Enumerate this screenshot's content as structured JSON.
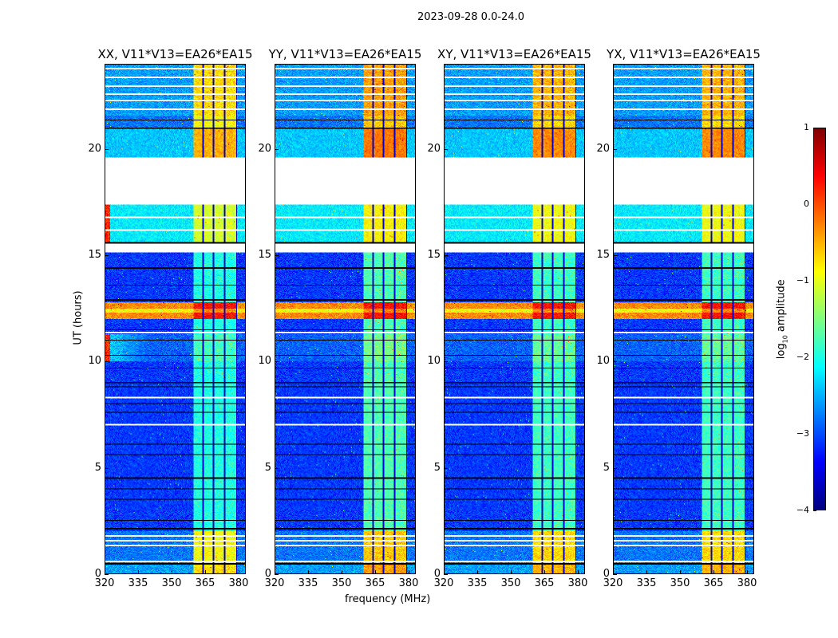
{
  "chart_data": {
    "type": "heatmap",
    "title": "2023-09-28 0.0-24.0",
    "xlabel": "frequency (MHz)",
    "ylabel": "UT (hours)",
    "xlim": [
      320,
      383.2
    ],
    "ylim": [
      0,
      24
    ],
    "xticks": [
      "320",
      "335",
      "350",
      "365",
      "380"
    ],
    "xtick_values": [
      320,
      335,
      350,
      365,
      380
    ],
    "yticks": [
      "0",
      "5",
      "10",
      "15",
      "20"
    ],
    "ytick_values": [
      0,
      5,
      10,
      15,
      20
    ],
    "colormap": "jet",
    "colorbar": {
      "label_main": "log",
      "label_sub": "10",
      "label_rest": " amplitude",
      "range": [
        -4,
        1
      ],
      "ticks": [
        "1",
        "0",
        "−1",
        "−2",
        "−3",
        "−4"
      ],
      "tick_values": [
        1,
        0,
        -1,
        -2,
        -3,
        -4
      ]
    },
    "panels": [
      {
        "title": "XX, V11*V13=EA26*EA15",
        "edge_hot": true,
        "band_boost": 1.4
      },
      {
        "title": "YY, V11*V13=EA26*EA15",
        "edge_hot": false,
        "band_boost": 1.7
      },
      {
        "title": "XY, V11*V13=EA26*EA15",
        "edge_hot": false,
        "band_boost": 1.6
      },
      {
        "title": "YX, V11*V13=EA26*EA15",
        "edge_hot": false,
        "band_boost": 1.6
      }
    ],
    "base_level": -3.1,
    "time_bands": [
      {
        "t0": 0.0,
        "t1": 0.5,
        "level": -2.6
      },
      {
        "t0": 0.5,
        "t1": 2.0,
        "level": -2.8
      },
      {
        "t0": 10.0,
        "t1": 11.3,
        "level": -2.9
      },
      {
        "t0": 12.0,
        "t1": 12.8,
        "level": -0.3
      },
      {
        "t0": 12.3,
        "t1": 12.5,
        "level": -0.9
      },
      {
        "t0": 15.6,
        "t1": 17.4,
        "level": -2.2
      },
      {
        "t0": 19.6,
        "t1": 21.0,
        "level": -2.4
      },
      {
        "t0": 21.0,
        "t1": 21.6,
        "level": -2.8
      },
      {
        "t0": 21.6,
        "t1": 24.0,
        "level": -2.6
      }
    ],
    "blank_ranges": [
      [
        17.4,
        19.6
      ],
      [
        15.15,
        15.55
      ]
    ],
    "bright_channels": {
      "f0": 360,
      "f1": 379.6,
      "strong_ranges": [
        [
          19.6,
          24
        ],
        [
          0,
          2
        ]
      ],
      "dark_lines": [
        364.2,
        369.0,
        374.0,
        379.6
      ]
    },
    "white_lines": [
      0.55,
      1.3,
      1.55,
      1.75,
      7.0,
      8.3,
      11.35,
      16.2,
      16.8,
      21.9,
      22.3,
      22.6,
      23.0,
      23.4,
      23.8
    ],
    "black_lines": [
      0.45,
      2.1,
      2.5,
      3.5,
      4.0,
      4.5,
      5.6,
      6.1,
      7.6,
      8.0,
      8.8,
      9.0,
      9.7,
      10.3,
      11.0,
      11.5,
      12.9,
      13.6,
      14.4,
      15.6,
      21.0,
      21.4
    ]
  }
}
